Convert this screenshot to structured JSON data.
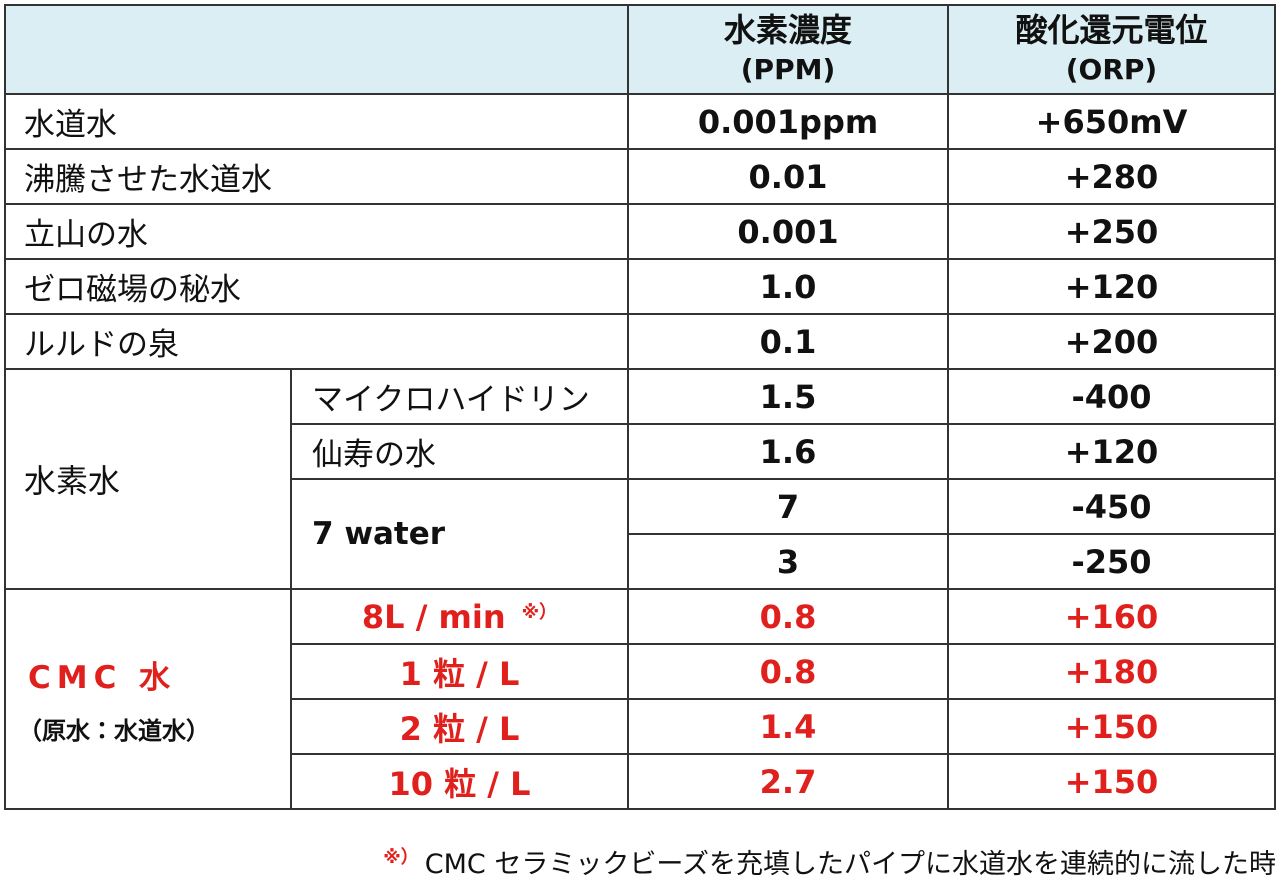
{
  "header": {
    "ppm": {
      "title": "水素濃度",
      "unit": "(PPM)"
    },
    "orp": {
      "title": "酸化還元電位",
      "unit": "(ORP)"
    }
  },
  "rows": [
    [
      "水道水",
      "0.001ppm",
      "+650mV"
    ],
    [
      "沸騰させた水道水",
      "0.01",
      "+280"
    ],
    [
      "立山の水",
      "0.001",
      "+250"
    ],
    [
      "ゼロ磁場の秘水",
      "1.0",
      "+120"
    ],
    [
      "ルルドの泉",
      "0.1",
      "+200"
    ]
  ],
  "hydrogen_water": {
    "label": "水素水",
    "rows": [
      [
        "マイクロハイドリン",
        "1.5",
        "-400"
      ],
      [
        "仙寿の水",
        "1.6",
        "+120"
      ]
    ],
    "seven_water": {
      "name": "7 water",
      "rows": [
        [
          "7",
          "-450"
        ],
        [
          "3",
          "-250"
        ]
      ]
    }
  },
  "cmc": {
    "label": "CMC 水",
    "sublabel": "（原水：水道水）",
    "row_note": "※）",
    "rows": [
      [
        "8L / min",
        "0.8",
        "+160"
      ],
      [
        "1 粒 / L",
        "0.8",
        "+180"
      ],
      [
        "2 粒 / L",
        "1.4",
        "+150"
      ],
      [
        "10 粒 / L",
        "2.7",
        "+150"
      ]
    ]
  },
  "footnote": {
    "mark": "※）",
    "text": "CMC セラミックビーズを充填したパイプに水道水を連続的に流した時"
  }
}
